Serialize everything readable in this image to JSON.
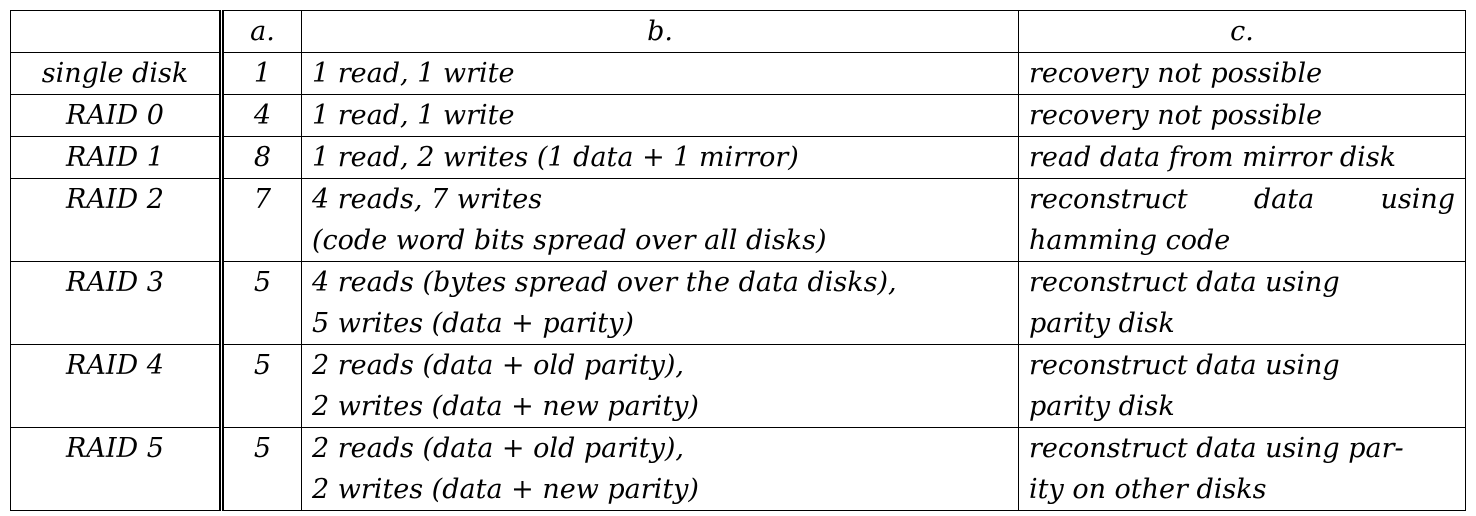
{
  "table": {
    "headers": [
      "",
      "a.",
      "b.",
      "c."
    ],
    "rows": [
      {
        "name": "single disk",
        "a": "1",
        "b": [
          "1 read, 1 write"
        ],
        "c": [
          "recovery not possible"
        ],
        "c_justify_first": false
      },
      {
        "name": "RAID 0",
        "a": "4",
        "b": [
          "1 read, 1 write"
        ],
        "c": [
          "recovery not possible"
        ],
        "c_justify_first": false
      },
      {
        "name": "RAID 1",
        "a": "8",
        "b": [
          "1 read, 2 writes (1 data + 1 mirror)"
        ],
        "c": [
          "read data from mirror disk"
        ],
        "c_justify_first": false
      },
      {
        "name": "RAID 2",
        "a": "7",
        "b": [
          "4 reads, 7 writes",
          "(code word bits spread over all disks)"
        ],
        "c": [
          "reconstruct data using",
          "hamming code"
        ],
        "c_justify_first": true
      },
      {
        "name": "RAID 3",
        "a": "5",
        "b": [
          "4 reads (bytes spread over the data disks),",
          "5 writes (data + parity)"
        ],
        "c": [
          "reconstruct data using",
          "parity disk"
        ],
        "c_justify_first": false
      },
      {
        "name": "RAID 4",
        "a": "5",
        "b": [
          "2 reads (data + old parity),",
          "2 writes (data + new parity)"
        ],
        "c": [
          "reconstruct data using",
          "parity disk"
        ],
        "c_justify_first": false
      },
      {
        "name": "RAID 5",
        "a": "5",
        "b": [
          "2 reads (data + old parity),",
          "2 writes (data + new parity)"
        ],
        "c": [
          "reconstruct data using par-",
          "ity on other disks"
        ],
        "c_justify_first": false
      }
    ]
  }
}
